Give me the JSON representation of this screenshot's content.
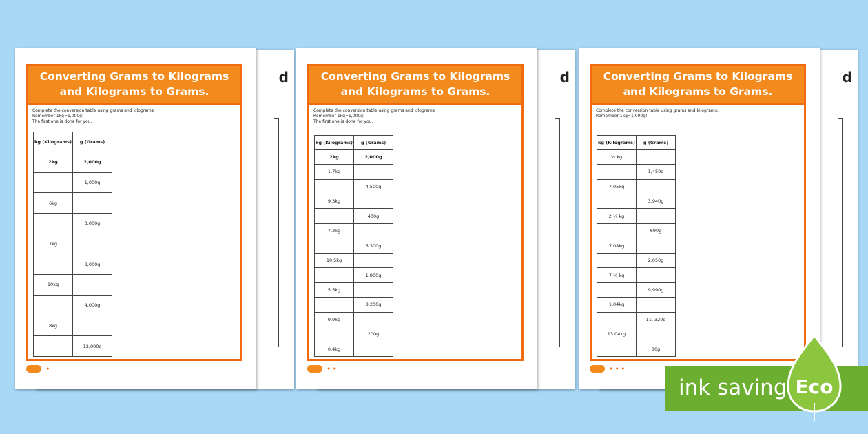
{
  "sheets": [
    {
      "title": "Converting Grams to Kilograms and Kilograms to Grams.",
      "instructions": [
        "Complete the conversion table using grams and kilograms.",
        "Remember 1kg=1,000g!",
        "The first one is done for you."
      ],
      "headers": [
        "kg (Kilograms)",
        "g (Grams)"
      ],
      "rows": [
        [
          "2kg",
          "2,000g"
        ],
        [
          "",
          "1,000g"
        ],
        [
          "6kg",
          ""
        ],
        [
          "",
          "3,000g"
        ],
        [
          "7kg",
          ""
        ],
        [
          "",
          "9,000g"
        ],
        [
          "10kg",
          ""
        ],
        [
          "",
          "4,000g"
        ],
        [
          "8kg",
          ""
        ],
        [
          "",
          "12,000g"
        ]
      ],
      "dots": "•"
    },
    {
      "title": "Converting Grams to Kilograms and Kilograms to Grams.",
      "instructions": [
        "Complete the conversion table using grams and kilograms.",
        "Remember 1kg=1,000g!",
        "The first one is done for you."
      ],
      "headers": [
        "kg (Kilograms)",
        "g (Grams)"
      ],
      "rows": [
        [
          "2kg",
          "2,000g"
        ],
        [
          "1.7kg",
          ""
        ],
        [
          "",
          "4,500g"
        ],
        [
          "9.3kg",
          ""
        ],
        [
          "",
          "400g"
        ],
        [
          "7.2kg",
          ""
        ],
        [
          "",
          "6,300g"
        ],
        [
          "10.5kg",
          ""
        ],
        [
          "",
          "1,900g"
        ],
        [
          "5.5kg",
          ""
        ],
        [
          "",
          "8,200g"
        ],
        [
          "9.9kg",
          ""
        ],
        [
          "",
          "200g"
        ],
        [
          "0.4kg",
          ""
        ]
      ],
      "dots": "••"
    },
    {
      "title": "Converting Grams to Kilograms and Kilograms to Grams.",
      "instructions": [
        "Complete the conversion table using grams and kilograms.",
        "Remember 1kg=1,000g!",
        ""
      ],
      "headers": [
        "kg (Kilograms)",
        "g (Grams)"
      ],
      "rows": [
        [
          "½ kg",
          ""
        ],
        [
          "",
          "1,450g"
        ],
        [
          "7.05kg",
          ""
        ],
        [
          "",
          "3,940g"
        ],
        [
          "2 ¼ kg",
          ""
        ],
        [
          "",
          "690g"
        ],
        [
          "7.08kg",
          ""
        ],
        [
          "",
          "2,050g"
        ],
        [
          "7 ¾ kg",
          ""
        ],
        [
          "",
          "9,990g"
        ],
        [
          "1.04kg",
          ""
        ],
        [
          "",
          "11, 320g"
        ],
        [
          "13.04kg",
          ""
        ],
        [
          "",
          "80g"
        ]
      ],
      "dots": "•••"
    }
  ],
  "badge": {
    "text": "ink saving",
    "eco": "Eco",
    "color": "#6cae2f"
  },
  "colors": {
    "background": "#a9d8f7",
    "accent": "#f28a1e"
  }
}
